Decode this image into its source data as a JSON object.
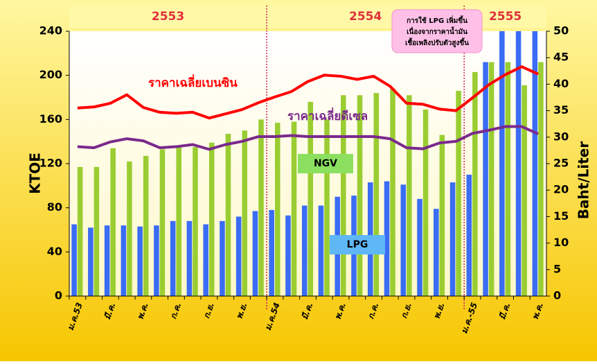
{
  "chart_data": {
    "type": "bar",
    "year_labels": [
      "2553",
      "2554",
      "2555"
    ],
    "categories": [
      "ม.ค.53",
      null,
      "มี.ค.",
      null,
      "พ.ค.",
      null,
      "ก.ค.",
      null,
      "ก.ย.",
      null,
      "พ.ย.",
      null,
      "ม.ค.54",
      null,
      "มี.ค.",
      null,
      "พ.ค.",
      null,
      "ก.ค.",
      null,
      "ก.ย.",
      null,
      "พ.ย.",
      null,
      "ม.ค.-55",
      null,
      "มี.ค.",
      null,
      "พ.ค."
    ],
    "series": [
      {
        "name": "LPG",
        "type": "bar",
        "color": "#3a6cf4",
        "values": [
          65,
          62,
          64,
          64,
          63,
          64,
          68,
          68,
          65,
          68,
          72,
          77,
          78,
          73,
          82,
          82,
          90,
          91,
          103,
          104,
          101,
          88,
          79,
          103,
          110,
          212,
          250,
          250,
          250
        ]
      },
      {
        "name": "NGV",
        "type": "bar",
        "color": "#9acd32",
        "values": [
          117,
          117,
          134,
          122,
          127,
          133,
          135,
          135,
          139,
          147,
          150,
          160,
          157,
          158,
          176,
          160,
          182,
          182,
          184,
          188,
          182,
          169,
          146,
          186,
          203,
          212,
          212,
          191,
          212
        ]
      },
      {
        "name": "ราคาเฉลี่ยเบนซิน",
        "type": "line",
        "axis": "y2",
        "color": "#ff0000",
        "values": [
          35.5,
          35.7,
          36.4,
          38.0,
          35.6,
          34.7,
          34.5,
          34.7,
          33.6,
          34.4,
          35.2,
          36.5,
          37.6,
          38.6,
          40.5,
          41.7,
          41.5,
          40.9,
          41.5,
          39.6,
          36.4,
          36.2,
          35.3,
          35.0,
          37.4,
          39.9,
          41.8,
          43.3,
          41.9
        ]
      },
      {
        "name": "ราคาเฉลี่ยดีเซล",
        "type": "line",
        "axis": "y2",
        "color": "#7a2a8c",
        "values": [
          28.2,
          28.0,
          29.1,
          29.7,
          29.3,
          28.0,
          28.2,
          28.6,
          27.7,
          28.6,
          29.2,
          30.1,
          30.1,
          30.3,
          30.1,
          30.1,
          30.1,
          30.1,
          30.1,
          29.7,
          28.0,
          27.8,
          28.9,
          29.2,
          30.7,
          31.3,
          32.0,
          32.0,
          30.6
        ]
      }
    ],
    "ylabel": "KTOE",
    "y2label": "Baht/Liter",
    "ylim": [
      0,
      240
    ],
    "yticks": [
      0,
      40,
      80,
      120,
      160,
      200,
      240
    ],
    "y2lim": [
      0,
      50
    ],
    "y2ticks": [
      0,
      5,
      10,
      15,
      20,
      25,
      30,
      35,
      40,
      45,
      50
    ],
    "annotation": [
      "การใช้ LPG เพิ่มขึ้น",
      "เนื่องจากราคาน้ำมัน",
      "เชื้อเพลิงปรับตัวสูงขึ้น"
    ]
  }
}
